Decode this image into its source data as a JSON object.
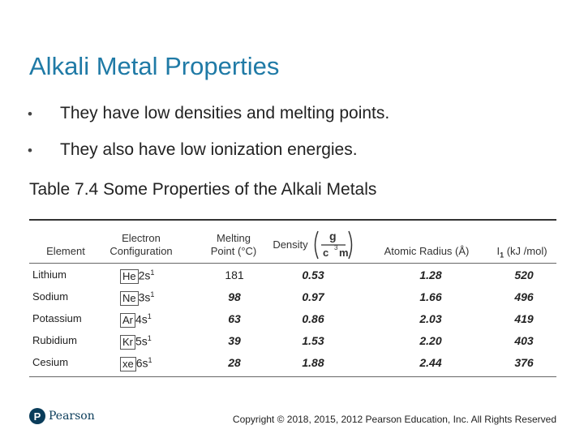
{
  "slide": {
    "title": "Alkali Metal Properties",
    "bullets": [
      "They have low densities and melting points.",
      "They also have low ionization energies."
    ],
    "bullet_glyph": "•",
    "caption": "Table 7.4 Some Properties of the Alkali Metals"
  },
  "table": {
    "headers": {
      "element": "Element",
      "config_line1": "Electron",
      "config_line2": "Configuration",
      "mp_line1": "Melting",
      "mp_line2": "Point (°C)",
      "density": "Density",
      "density_num": "g",
      "density_den": "c",
      "density_exp": "3",
      "density_m": "m",
      "radius": "Atomic Radius (Å)",
      "ie_I": "I",
      "ie_sub": "1",
      "ie_rest": " (kJ /mol)"
    },
    "rows": [
      {
        "element": "Lithium",
        "core": "He",
        "shell": "2s",
        "exp": "1",
        "mp": "181",
        "density": "0.53",
        "radius": "1.28",
        "ie": "520"
      },
      {
        "element": "Sodium",
        "core": "Ne",
        "shell": "3s",
        "exp": "1",
        "mp": "98",
        "density": "0.97",
        "radius": "1.66",
        "ie": "496"
      },
      {
        "element": "Potassium",
        "core": "Ar",
        "shell": "4s",
        "exp": "1",
        "mp": "63",
        "density": "0.86",
        "radius": "2.03",
        "ie": "419"
      },
      {
        "element": "Rubidium",
        "core": "Kr",
        "shell": "5s",
        "exp": "1",
        "mp": "39",
        "density": "1.53",
        "radius": "2.20",
        "ie": "403"
      },
      {
        "element": "Cesium",
        "core": "xe",
        "shell": "6s",
        "exp": "1",
        "mp": "28",
        "density": "1.88",
        "radius": "2.44",
        "ie": "376"
      }
    ]
  },
  "footer": {
    "logo_mark": "P",
    "logo_text": "Pearson",
    "copyright": "Copyright © 2018, 2015, 2012 Pearson Education, Inc. All Rights Reserved"
  },
  "colors": {
    "title": "#1f7aa6",
    "logo": "#0a3c5a"
  }
}
